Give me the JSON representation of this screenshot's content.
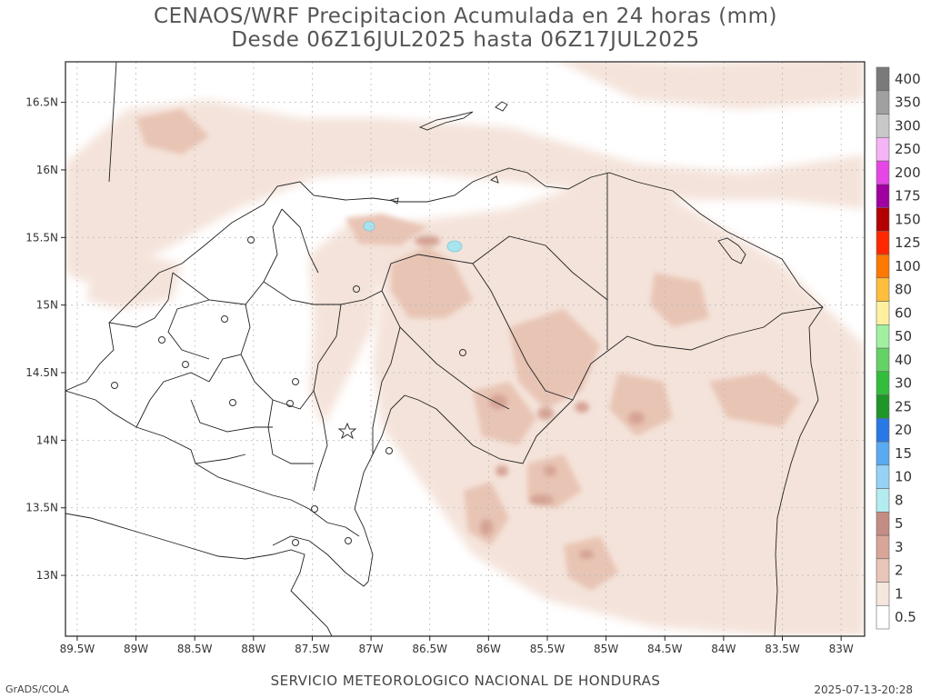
{
  "title": {
    "line1": "CENAOS/WRF Precipitacion Acumulada en 24 horas (mm)",
    "line2": "Desde 06Z16JUL2025 hasta 06Z17JUL2025"
  },
  "footer": {
    "left": "GrADS/COLA",
    "center": "SERVICIO METEOROLOGICO NACIONAL DE HONDURAS",
    "right": "2025-07-13-20:28"
  },
  "map": {
    "lon_range": [
      -89.6,
      -82.8
    ],
    "lat_range": [
      12.55,
      16.8
    ],
    "lon_ticks": [
      "89.5W",
      "89W",
      "88.5W",
      "88W",
      "87.5W",
      "87W",
      "86.5W",
      "86W",
      "85.5W",
      "85W",
      "84.5W",
      "84W",
      "83.5W",
      "83W"
    ],
    "lon_values": [
      -89.5,
      -89,
      -88.5,
      -88,
      -87.5,
      -87,
      -86.5,
      -86,
      -85.5,
      -85,
      -84.5,
      -84,
      -83.5,
      -83
    ],
    "lat_ticks": [
      "13N",
      "13.5N",
      "14N",
      "14.5N",
      "15N",
      "15.5N",
      "16N",
      "16.5N"
    ],
    "lat_values": [
      13,
      13.5,
      14,
      14.5,
      15,
      15.5,
      16,
      16.5
    ]
  },
  "legend": {
    "units": "mm",
    "levels": [
      {
        "label": "0.5",
        "color": "#ffffff"
      },
      {
        "label": "1",
        "color": "#f5e6de"
      },
      {
        "label": "2",
        "color": "#e8c6b8"
      },
      {
        "label": "3",
        "color": "#d8a598"
      },
      {
        "label": "5",
        "color": "#c48d84"
      },
      {
        "label": "8",
        "color": "#b3ecf0"
      },
      {
        "label": "10",
        "color": "#96d2f5"
      },
      {
        "label": "15",
        "color": "#5aaaf0"
      },
      {
        "label": "20",
        "color": "#2878e6"
      },
      {
        "label": "25",
        "color": "#1e9628"
      },
      {
        "label": "30",
        "color": "#32be3c"
      },
      {
        "label": "40",
        "color": "#64d264"
      },
      {
        "label": "50",
        "color": "#a0f0a0"
      },
      {
        "label": "60",
        "color": "#fff0a0"
      },
      {
        "label": "80",
        "color": "#ffbe3c"
      },
      {
        "label": "100",
        "color": "#ff7800"
      },
      {
        "label": "125",
        "color": "#ff2800"
      },
      {
        "label": "150",
        "color": "#b40000"
      },
      {
        "label": "175",
        "color": "#a000a0"
      },
      {
        "label": "200",
        "color": "#e646e6"
      },
      {
        "label": "250",
        "color": "#f5b4f5"
      },
      {
        "label": "300",
        "color": "#c8c8c8"
      },
      {
        "label": "350",
        "color": "#a0a0a0"
      },
      {
        "label": "400",
        "color": "#7a7a7a"
      }
    ]
  }
}
